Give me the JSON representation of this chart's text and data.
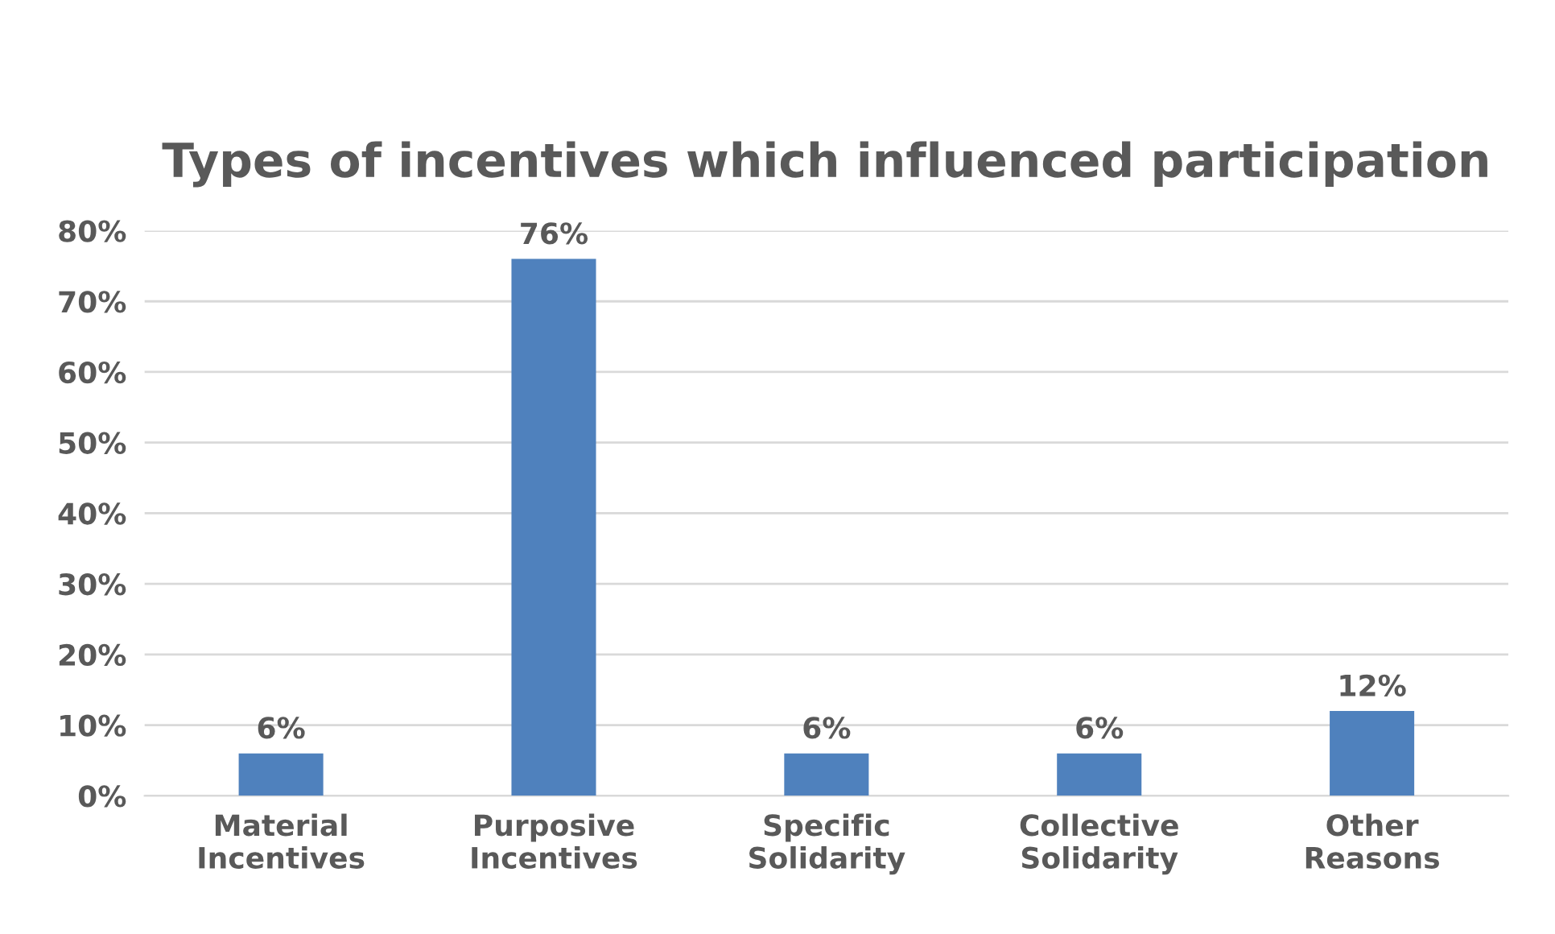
{
  "chart_data": {
    "type": "bar",
    "title": "Types of incentives which influenced participation",
    "categories": [
      "Material\nIncentives",
      "Purposive\nIncentives",
      "Specific\nSolidarity",
      "Collective\nSolidarity",
      "Other\nReasons"
    ],
    "values": [
      6,
      76,
      6,
      6,
      12
    ],
    "value_labels": [
      "6%",
      "76%",
      "6%",
      "6%",
      "12%"
    ],
    "color": "#4f81bd",
    "ylim": [
      0,
      80
    ],
    "yticks": [
      {
        "value": 0,
        "label": "0%"
      },
      {
        "value": 10,
        "label": "10%"
      },
      {
        "value": 20,
        "label": "20%"
      },
      {
        "value": 30,
        "label": "30%"
      },
      {
        "value": 40,
        "label": "40%"
      },
      {
        "value": 50,
        "label": "50%"
      },
      {
        "value": 60,
        "label": "60%"
      },
      {
        "value": 70,
        "label": "70%"
      },
      {
        "value": 80,
        "label": "80%"
      }
    ],
    "grid": "y"
  }
}
